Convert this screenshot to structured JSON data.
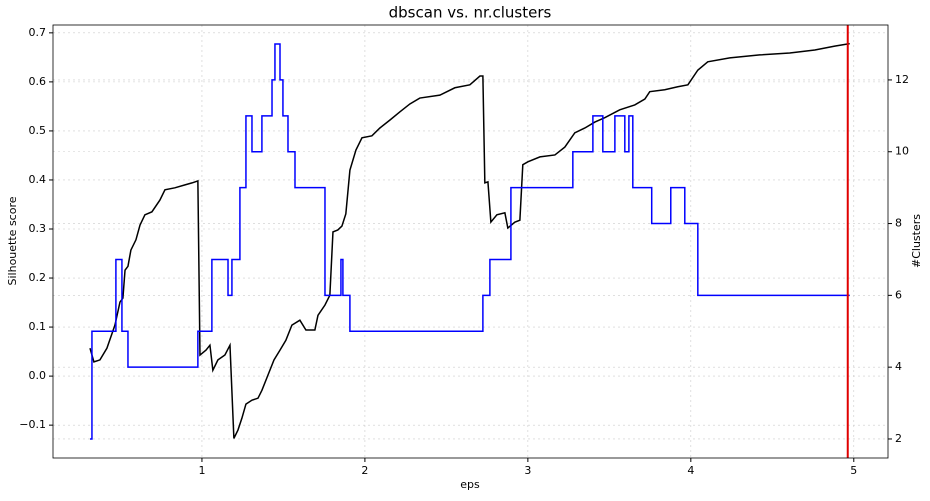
{
  "chart_data": {
    "type": "line",
    "title": "dbscan vs. nr.clusters",
    "x_label": "eps",
    "y_label": "Silhouette score",
    "y2_label": "#Clusters",
    "xlim": [
      0.086,
      5.21
    ],
    "xticks": [
      1,
      2,
      3,
      4,
      5
    ],
    "ylim": [
      -0.167,
      0.716
    ],
    "yticks": [
      {
        "value": -0.1,
        "label": "−0.1"
      },
      {
        "value": 0,
        "label": "0.0"
      },
      0.1,
      0.2,
      0.3,
      0.4,
      0.5,
      0.6,
      0.7
    ],
    "y2lim": [
      1.47,
      13.53
    ],
    "y2ticks": [
      2,
      4,
      6,
      8,
      10,
      12
    ],
    "grid": true,
    "vline": {
      "x": 4.963,
      "color": "#e00000"
    },
    "series": [
      {
        "color": "#000000",
        "axis": "y",
        "x": [
          0.313,
          0.337,
          0.374,
          0.417,
          0.466,
          0.497,
          0.515,
          0.528,
          0.546,
          0.564,
          0.595,
          0.62,
          0.65,
          0.693,
          0.742,
          0.773,
          0.834,
          0.896,
          0.939,
          0.975,
          0.988,
          1.025,
          1.049,
          1.067,
          1.098,
          1.141,
          1.172,
          1.196,
          1.221,
          1.245,
          1.27,
          1.307,
          1.344,
          1.368,
          1.405,
          1.442,
          1.479,
          1.515,
          1.552,
          1.601,
          1.638,
          1.693,
          1.712,
          1.755,
          1.785,
          1.804,
          1.834,
          1.859,
          1.883,
          1.908,
          1.945,
          1.982,
          2.043,
          2.092,
          2.153,
          2.215,
          2.276,
          2.337,
          2.46,
          2.552,
          2.644,
          2.706,
          2.724,
          2.736,
          2.755,
          2.773,
          2.81,
          2.859,
          2.877,
          2.92,
          2.951,
          2.969,
          3.0,
          3.074,
          3.166,
          3.227,
          3.288,
          3.35,
          3.411,
          3.472,
          3.564,
          3.656,
          3.718,
          3.748,
          3.84,
          3.92,
          3.982,
          4.043,
          4.104,
          4.239,
          4.423,
          4.607,
          4.761,
          4.883,
          4.975
        ],
        "values": [
          0.057,
          0.029,
          0.033,
          0.057,
          0.104,
          0.151,
          0.159,
          0.216,
          0.224,
          0.257,
          0.278,
          0.308,
          0.329,
          0.335,
          0.359,
          0.38,
          0.384,
          0.39,
          0.394,
          0.398,
          0.043,
          0.053,
          0.063,
          0.012,
          0.033,
          0.043,
          0.063,
          -0.127,
          -0.11,
          -0.086,
          -0.057,
          -0.049,
          -0.045,
          -0.029,
          0.002,
          0.033,
          0.053,
          0.073,
          0.104,
          0.114,
          0.094,
          0.094,
          0.124,
          0.145,
          0.165,
          0.294,
          0.298,
          0.306,
          0.331,
          0.42,
          0.461,
          0.486,
          0.49,
          0.506,
          0.522,
          0.539,
          0.555,
          0.567,
          0.573,
          0.588,
          0.594,
          0.612,
          0.612,
          0.394,
          0.396,
          0.314,
          0.329,
          0.333,
          0.302,
          0.314,
          0.318,
          0.431,
          0.437,
          0.447,
          0.451,
          0.467,
          0.496,
          0.506,
          0.518,
          0.527,
          0.543,
          0.553,
          0.565,
          0.58,
          0.584,
          0.59,
          0.594,
          0.624,
          0.641,
          0.649,
          0.655,
          0.659,
          0.665,
          0.673,
          0.678
        ]
      },
      {
        "color": "#0000ff",
        "axis": "y2",
        "drawstyle": "steps-post",
        "x": [
          0.313,
          0.325,
          0.472,
          0.509,
          0.546,
          0.975,
          1.061,
          1.16,
          1.184,
          1.233,
          1.27,
          1.307,
          1.368,
          1.43,
          1.448,
          1.479,
          1.497,
          1.528,
          1.571,
          1.755,
          1.853,
          1.865,
          1.908,
          2.724,
          2.767,
          2.896,
          3.276,
          3.399,
          3.46,
          3.534,
          3.595,
          3.62,
          3.644,
          3.76,
          3.877,
          3.963,
          4.043,
          4.975
        ],
        "values": [
          2,
          5,
          7,
          5,
          4,
          5,
          7,
          6,
          7,
          9,
          11,
          10,
          11,
          12,
          13,
          12,
          11,
          10,
          9,
          6,
          7,
          6,
          5,
          6,
          7,
          9,
          10,
          11,
          10,
          11,
          10,
          11,
          9,
          8,
          9,
          8,
          6,
          6
        ]
      }
    ]
  }
}
